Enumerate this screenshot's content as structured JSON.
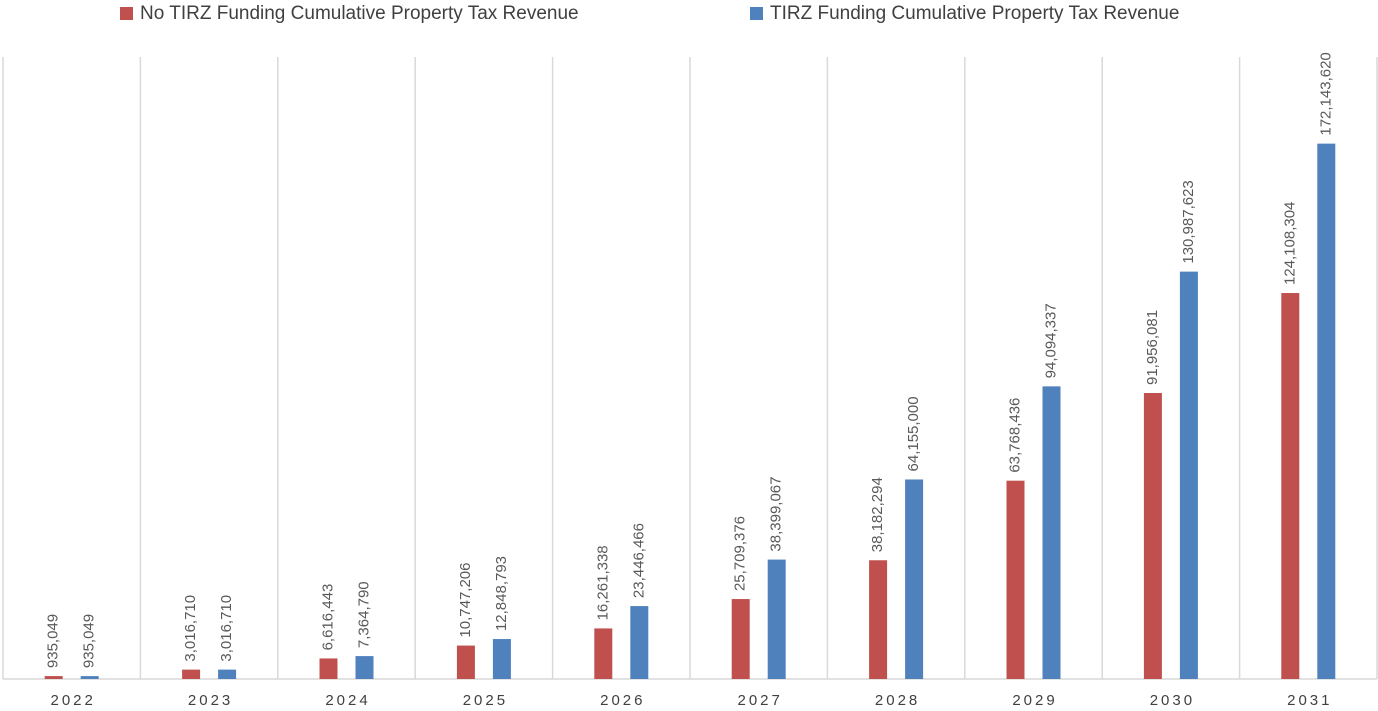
{
  "chart_data": {
    "type": "bar",
    "categories": [
      "2022",
      "2023",
      "2024",
      "2025",
      "2026",
      "2027",
      "2028",
      "2029",
      "2030",
      "2031"
    ],
    "series": [
      {
        "name": "No TIRZ Funding Cumulative Property Tax Revenue",
        "color": "#c0504d",
        "values": [
          935049,
          3016710,
          6616443,
          10747206,
          16261338,
          25709376,
          38182294,
          63768436,
          91956081,
          124108304
        ],
        "value_labels": [
          "935,049",
          "3,016,710",
          "6,616,443",
          "10,747,206",
          "16,261,338",
          "25,709,376",
          "38,182,294",
          "63,768,436",
          "91,956,081",
          "124,108,304"
        ]
      },
      {
        "name": "TIRZ Funding Cumulative Property Tax Revenue",
        "color": "#4f81bd",
        "values": [
          935049,
          3016710,
          7364790,
          12848793,
          23446466,
          38399067,
          64155000,
          94094337,
          130987623,
          172143620
        ],
        "value_labels": [
          "935,049",
          "3,016,710",
          "7,364,790",
          "12,848,793",
          "23,446,466",
          "38,399,067",
          "64,155,000",
          "94,094,337",
          "130,987,623",
          "172,143,620"
        ]
      }
    ],
    "ylim": [
      0,
      200000000
    ]
  }
}
